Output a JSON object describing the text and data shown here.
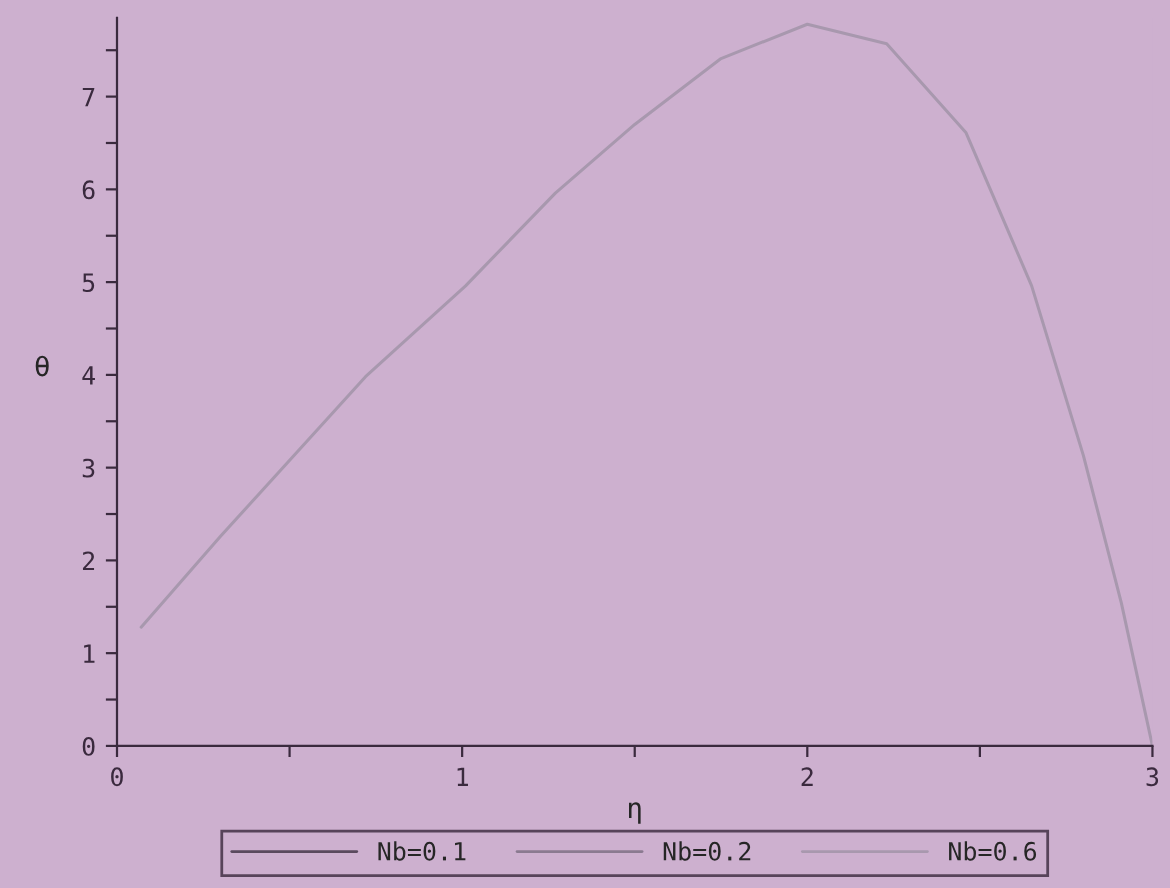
{
  "chart_data": {
    "type": "line",
    "xlabel": "η",
    "ylabel": "θ",
    "x": [
      0.07,
      0.3,
      0.72,
      1.01,
      1.27,
      1.5,
      1.75,
      2.0,
      2.23,
      2.46,
      2.65,
      2.8,
      2.91,
      3.0
    ],
    "series": [
      {
        "name": "Nb=0.1",
        "color": "#5a4a5e",
        "values": [
          null,
          null,
          null,
          null,
          null,
          null,
          null,
          null,
          null,
          null,
          null,
          null,
          null,
          null
        ]
      },
      {
        "name": "Nb=0.2",
        "color": "#8a7a90",
        "values": [
          null,
          null,
          null,
          null,
          null,
          null,
          null,
          null,
          null,
          null,
          null,
          null,
          null,
          null
        ]
      },
      {
        "name": "Nb=0.6",
        "color": "#a898ae",
        "values": [
          1.28,
          2.26,
          3.98,
          4.96,
          5.96,
          6.7,
          7.41,
          7.78,
          7.57,
          6.61,
          4.96,
          3.13,
          1.54,
          0.0
        ]
      }
    ],
    "xlim": [
      0,
      3
    ],
    "ylim": [
      0,
      7.85
    ],
    "xticks": [
      0,
      {
        "value": 0.5,
        "label": null
      },
      1,
      {
        "value": 1.5,
        "label": null
      },
      2,
      {
        "value": 2.5,
        "label": null
      },
      3
    ],
    "yticks": [
      0,
      {
        "value": 0.5,
        "label": null
      },
      1,
      {
        "value": 1.5,
        "label": null
      },
      2,
      {
        "value": 2.5,
        "label": null
      },
      3,
      {
        "value": 3.5,
        "label": null
      },
      4,
      {
        "value": 4.5,
        "label": null
      },
      5,
      {
        "value": 5.5,
        "label": null
      },
      6,
      {
        "value": 6.5,
        "label": null
      },
      7,
      {
        "value": 7.5,
        "label": null
      }
    ],
    "legend": "bottom",
    "grid": false,
    "marker": "none",
    "line_style": "solid"
  }
}
